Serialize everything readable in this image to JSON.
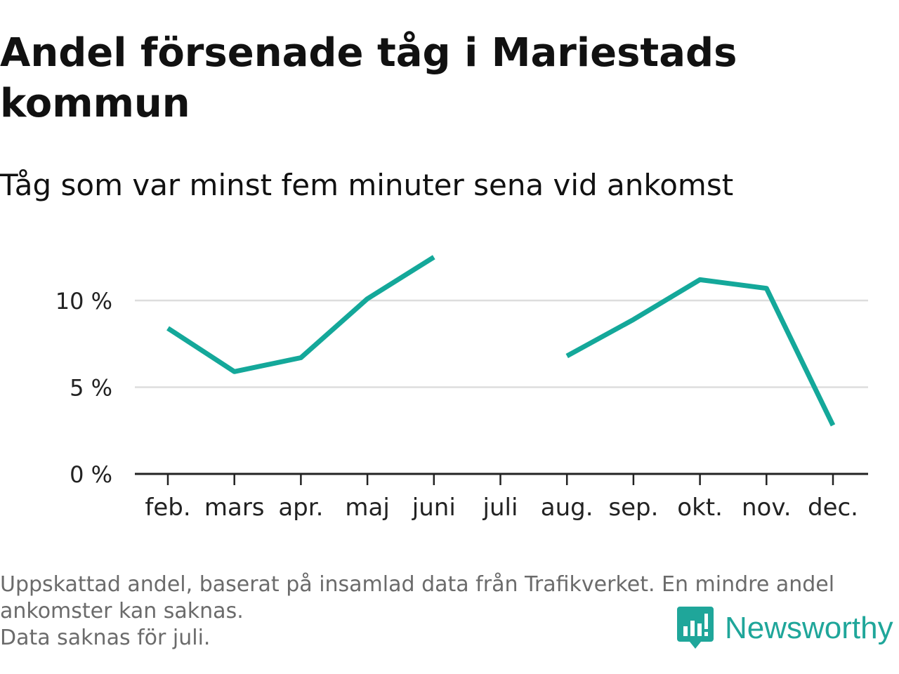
{
  "title": "Andel försenade tåg i Mariestads kommun",
  "subtitle": "Tåg som var minst fem minuter sena vid ankomst",
  "footnote": {
    "lines": [
      "Uppskattad andel, baserat på insamlad data från Trafikverket. En mindre andel",
      "ankomster kan saknas.",
      "Data saknas för juli."
    ]
  },
  "brand": {
    "name": "Newsworthy",
    "icon": "newsworthy-bar-chart-icon",
    "color": "#1fa69a"
  },
  "colors": {
    "line": "#14a89a",
    "grid": "#dddddd",
    "axis": "#222222",
    "text": "#111111",
    "footnote": "#6b6b6b"
  },
  "chart_data": {
    "type": "line",
    "title": "",
    "xlabel": "",
    "ylabel": "",
    "categories": [
      "feb.",
      "mars",
      "apr.",
      "maj",
      "juni",
      "juli",
      "aug.",
      "sep.",
      "okt.",
      "nov.",
      "dec."
    ],
    "series": [
      {
        "values": [
          8.4,
          5.9,
          6.7,
          10.1,
          12.5,
          null,
          6.8,
          8.9,
          11.2,
          10.7,
          2.8
        ]
      }
    ],
    "yticks": [
      0,
      5,
      10
    ],
    "ytick_labels": [
      "0 %",
      "5 %",
      "10 %"
    ],
    "ylim": [
      0,
      13
    ],
    "grid": true,
    "legend": "none"
  }
}
